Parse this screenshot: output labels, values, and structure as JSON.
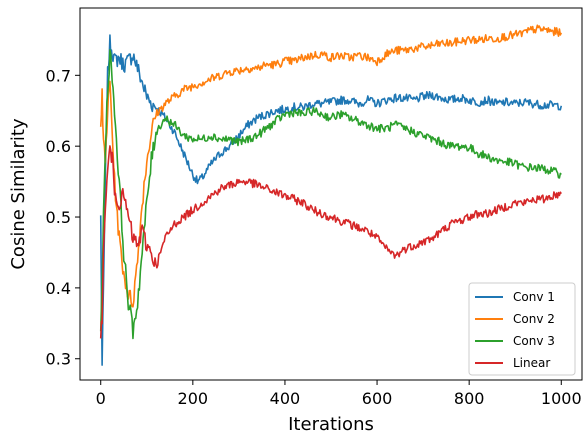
{
  "chart_data": {
    "type": "line",
    "title": "",
    "xlabel": "Iterations",
    "ylabel": "Cosine Similarity",
    "xlim": [
      -45,
      1045
    ],
    "ylim": [
      0.27,
      0.795
    ],
    "xticks": [
      0,
      200,
      400,
      600,
      800,
      1000
    ],
    "yticks": [
      0.3,
      0.4,
      0.5,
      0.6,
      0.7
    ],
    "xtick_labels": [
      "0",
      "200",
      "400",
      "600",
      "800",
      "1000"
    ],
    "ytick_labels": [
      "0.3",
      "0.4",
      "0.5",
      "0.6",
      "0.7"
    ],
    "grid": false,
    "legend_position": "lower-right",
    "series": [
      {
        "name": "Conv 1",
        "color": "#1f77b4",
        "x": [
          0,
          3,
          6,
          10,
          15,
          20,
          25,
          30,
          40,
          50,
          60,
          70,
          80,
          90,
          100,
          110,
          120,
          140,
          160,
          180,
          200,
          210,
          220,
          240,
          260,
          280,
          300,
          320,
          340,
          360,
          380,
          400,
          420,
          440,
          460,
          480,
          500,
          520,
          540,
          560,
          580,
          600,
          620,
          640,
          660,
          680,
          700,
          720,
          740,
          760,
          780,
          800,
          820,
          840,
          860,
          880,
          900,
          920,
          940,
          960,
          980,
          1000
        ],
        "y": [
          0.5,
          0.29,
          0.4,
          0.55,
          0.7,
          0.745,
          0.735,
          0.72,
          0.725,
          0.715,
          0.72,
          0.73,
          0.71,
          0.69,
          0.67,
          0.66,
          0.655,
          0.64,
          0.62,
          0.59,
          0.56,
          0.55,
          0.555,
          0.575,
          0.59,
          0.6,
          0.615,
          0.63,
          0.64,
          0.645,
          0.65,
          0.652,
          0.655,
          0.655,
          0.66,
          0.66,
          0.662,
          0.665,
          0.665,
          0.66,
          0.665,
          0.66,
          0.665,
          0.668,
          0.668,
          0.665,
          0.67,
          0.672,
          0.668,
          0.665,
          0.668,
          0.665,
          0.662,
          0.665,
          0.66,
          0.662,
          0.66,
          0.662,
          0.66,
          0.658,
          0.658,
          0.657
        ]
      },
      {
        "name": "Conv 2",
        "color": "#ff7f0e",
        "x": [
          0,
          3,
          6,
          10,
          15,
          20,
          25,
          30,
          40,
          50,
          60,
          70,
          80,
          90,
          100,
          110,
          120,
          140,
          160,
          180,
          200,
          220,
          240,
          260,
          280,
          300,
          320,
          340,
          360,
          380,
          400,
          420,
          440,
          460,
          480,
          500,
          520,
          540,
          560,
          580,
          600,
          620,
          640,
          660,
          680,
          700,
          720,
          740,
          760,
          780,
          800,
          820,
          840,
          860,
          880,
          900,
          920,
          940,
          960,
          980,
          1000
        ],
        "y": [
          0.63,
          0.67,
          0.6,
          0.58,
          0.65,
          0.69,
          0.62,
          0.55,
          0.47,
          0.42,
          0.39,
          0.38,
          0.44,
          0.52,
          0.58,
          0.62,
          0.645,
          0.66,
          0.67,
          0.68,
          0.685,
          0.69,
          0.695,
          0.7,
          0.705,
          0.707,
          0.71,
          0.71,
          0.715,
          0.715,
          0.72,
          0.72,
          0.725,
          0.728,
          0.73,
          0.725,
          0.728,
          0.725,
          0.728,
          0.725,
          0.72,
          0.73,
          0.735,
          0.735,
          0.738,
          0.74,
          0.742,
          0.745,
          0.745,
          0.748,
          0.75,
          0.75,
          0.752,
          0.752,
          0.755,
          0.757,
          0.76,
          0.765,
          0.765,
          0.762,
          0.76
        ]
      },
      {
        "name": "Conv 3",
        "color": "#2ca02c",
        "x": [
          0,
          3,
          6,
          10,
          15,
          20,
          25,
          30,
          40,
          50,
          60,
          70,
          80,
          90,
          100,
          110,
          120,
          140,
          160,
          180,
          200,
          220,
          240,
          260,
          280,
          300,
          320,
          340,
          360,
          380,
          400,
          420,
          440,
          460,
          480,
          500,
          520,
          540,
          560,
          580,
          600,
          620,
          640,
          660,
          680,
          700,
          720,
          740,
          760,
          780,
          800,
          820,
          840,
          860,
          880,
          900,
          920,
          940,
          960,
          980,
          1000
        ],
        "y": [
          0.35,
          0.4,
          0.5,
          0.6,
          0.68,
          0.73,
          0.7,
          0.65,
          0.55,
          0.45,
          0.38,
          0.34,
          0.38,
          0.45,
          0.52,
          0.58,
          0.62,
          0.64,
          0.63,
          0.615,
          0.61,
          0.61,
          0.615,
          0.61,
          0.61,
          0.605,
          0.61,
          0.615,
          0.625,
          0.635,
          0.645,
          0.648,
          0.645,
          0.65,
          0.645,
          0.64,
          0.645,
          0.64,
          0.635,
          0.63,
          0.625,
          0.625,
          0.63,
          0.625,
          0.62,
          0.615,
          0.61,
          0.605,
          0.6,
          0.6,
          0.598,
          0.59,
          0.585,
          0.58,
          0.578,
          0.575,
          0.57,
          0.57,
          0.568,
          0.565,
          0.56
        ]
      },
      {
        "name": "Linear",
        "color": "#d62728",
        "x": [
          0,
          3,
          6,
          10,
          15,
          20,
          25,
          30,
          40,
          50,
          60,
          70,
          80,
          90,
          100,
          110,
          120,
          140,
          160,
          180,
          200,
          220,
          240,
          260,
          280,
          300,
          320,
          340,
          360,
          380,
          400,
          420,
          440,
          460,
          480,
          500,
          520,
          540,
          560,
          580,
          600,
          620,
          640,
          660,
          680,
          700,
          720,
          740,
          760,
          780,
          800,
          820,
          840,
          860,
          880,
          900,
          920,
          940,
          960,
          980,
          1000
        ],
        "y": [
          0.34,
          0.35,
          0.45,
          0.52,
          0.56,
          0.6,
          0.58,
          0.54,
          0.52,
          0.53,
          0.5,
          0.47,
          0.46,
          0.48,
          0.46,
          0.45,
          0.43,
          0.47,
          0.49,
          0.5,
          0.51,
          0.52,
          0.53,
          0.54,
          0.545,
          0.55,
          0.55,
          0.545,
          0.54,
          0.535,
          0.53,
          0.525,
          0.52,
          0.51,
          0.505,
          0.5,
          0.495,
          0.49,
          0.485,
          0.48,
          0.47,
          0.455,
          0.445,
          0.455,
          0.46,
          0.465,
          0.47,
          0.48,
          0.49,
          0.495,
          0.5,
          0.505,
          0.505,
          0.51,
          0.515,
          0.52,
          0.52,
          0.525,
          0.525,
          0.53,
          0.533
        ]
      }
    ]
  }
}
